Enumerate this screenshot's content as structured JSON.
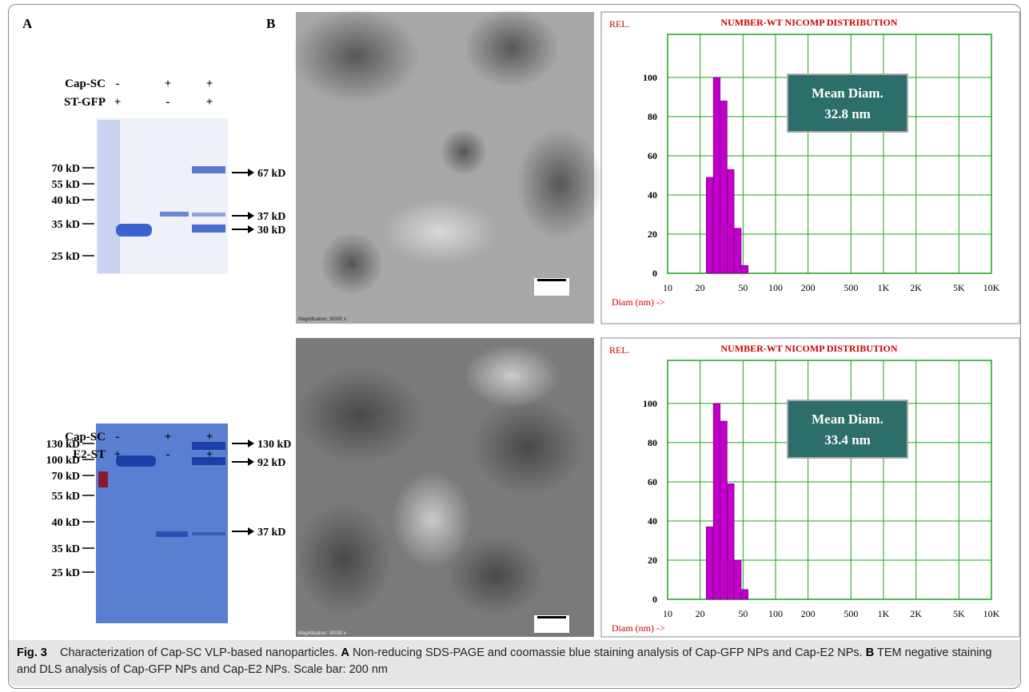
{
  "panel_labels": [
    "A",
    "B"
  ],
  "gels": [
    {
      "rows": [
        {
          "name": "Cap-SC",
          "signs": [
            "-",
            "+",
            "+"
          ]
        },
        {
          "name": "ST-GFP",
          "signs": [
            "+",
            "-",
            "+"
          ]
        }
      ],
      "markers": [
        "70 kD",
        "55 kD",
        "40 kD",
        "35 kD",
        "25 kD"
      ],
      "bands": [
        "67 kD",
        "37 kD",
        "30 kD"
      ]
    },
    {
      "rows": [
        {
          "name": "Cap-SC",
          "signs": [
            "-",
            "+",
            "+"
          ]
        },
        {
          "name": "E2-ST",
          "signs": [
            "+",
            "-",
            "+"
          ]
        }
      ],
      "markers": [
        "130 kD",
        "100 kD",
        "70 kD",
        "55 kD",
        "40 kD",
        "35 kD",
        "25 kD"
      ],
      "bands": [
        "130 kD",
        "92 kD",
        "37 kD"
      ]
    }
  ],
  "tem": [
    {
      "magnification": "Magnification: 30000 x"
    },
    {
      "magnification": "Magnification: 30000 x"
    }
  ],
  "chart_data": [
    {
      "type": "histogram",
      "title": "NUMBER-WT NICOMP DISTRIBUTION",
      "y_label": "REL.",
      "x_label": "Diam (nm) ->",
      "annotation": [
        "Mean Diam.",
        "32.8 nm"
      ],
      "bins": [
        22.8,
        26.5,
        30.7,
        35.6,
        41.3,
        48.0,
        55.7
      ],
      "values": [
        49,
        100,
        88,
        53,
        23,
        4
      ],
      "color": "#c000c8",
      "log_x": true,
      "grid": true,
      "xlim": [
        10,
        10000
      ],
      "ylim": [
        0,
        122
      ],
      "xticks": [
        10,
        20,
        50,
        100,
        200,
        500,
        {
          "value": 1000,
          "label": "1K"
        },
        {
          "value": 2000,
          "label": "2K"
        },
        {
          "value": 5000,
          "label": "5K"
        },
        {
          "value": 10000,
          "label": "10K"
        }
      ],
      "yticks": [
        0,
        20,
        40,
        60,
        80,
        100
      ]
    },
    {
      "type": "histogram",
      "title": "NUMBER-WT NICOMP DISTRIBUTION",
      "y_label": "REL.",
      "x_label": "Diam (nm) ->",
      "annotation": [
        "Mean Diam.",
        "33.4 nm"
      ],
      "bins": [
        22.8,
        26.5,
        30.7,
        35.6,
        41.3,
        48.0,
        55.7
      ],
      "values": [
        37,
        100,
        91,
        59,
        20,
        5
      ],
      "color": "#c000c8",
      "log_x": true,
      "grid": true,
      "xlim": [
        10,
        10000
      ],
      "ylim": [
        0,
        122
      ],
      "xticks": [
        10,
        20,
        50,
        100,
        200,
        500,
        {
          "value": 1000,
          "label": "1K"
        },
        {
          "value": 2000,
          "label": "2K"
        },
        {
          "value": 5000,
          "label": "5K"
        },
        {
          "value": 10000,
          "label": "10K"
        }
      ],
      "yticks": [
        0,
        20,
        40,
        60,
        80,
        100
      ]
    }
  ],
  "caption": {
    "label": "Fig. 3",
    "intro": "Characterization of Cap-SC VLP-based nanoparticles.",
    "a_label": "A",
    "a_text": "Non-reducing SDS-PAGE and coomassie blue staining analysis of Cap-GFP NPs and Cap-E2 NPs.",
    "b_label": "B",
    "b_text": "TEM negative staining and DLS analysis of Cap-GFP NPs and Cap-E2 NPs. Scale bar: 200 nm"
  }
}
